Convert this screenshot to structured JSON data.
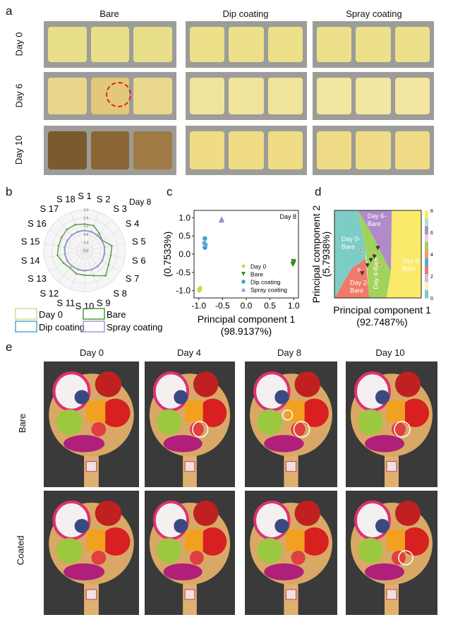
{
  "panel_labels": {
    "a": "a",
    "b": "b",
    "c": "c",
    "d": "d",
    "e": "e"
  },
  "panel_a": {
    "columns": [
      "Bare",
      "Dip coating",
      "Spray coating"
    ],
    "rows": [
      "Day 0",
      "Day 6",
      "Day 10"
    ]
  },
  "panel_e": {
    "columns": [
      "Day 0",
      "Day 4",
      "Day 8",
      "Day 10"
    ],
    "rows": [
      "Bare",
      "Coated"
    ]
  },
  "chart_data": [
    {
      "panel": "b",
      "type": "radar",
      "annotation": "Day 8",
      "axes": [
        "S 1",
        "S 2",
        "S 3",
        "S 4",
        "S 5",
        "S 6",
        "S 7",
        "S 8",
        "S 9",
        "S 10",
        "S 11",
        "S 12",
        "S 13",
        "S 14",
        "S 15",
        "S 16",
        "S 17",
        "S 18"
      ],
      "radial_ticks": [
        "0.0",
        "0.4",
        "0.8",
        "1.2",
        "1.6",
        "2.0"
      ],
      "rlim": [
        0,
        2.0
      ],
      "series": [
        {
          "name": "Day 0",
          "color": "#d8d890",
          "values": [
            1.0,
            1.0,
            1.0,
            1.0,
            1.0,
            1.0,
            1.0,
            1.0,
            1.0,
            1.0,
            1.0,
            1.0,
            1.0,
            1.0,
            1.0,
            1.0,
            1.0,
            1.0
          ]
        },
        {
          "name": "Bare",
          "color": "#4f9a3a",
          "values": [
            1.3,
            1.3,
            1.1,
            1.0,
            1.35,
            1.3,
            1.35,
            1.6,
            1.3,
            1.2,
            1.2,
            1.1,
            1.2,
            1.35,
            1.3,
            1.3,
            1.35,
            1.35
          ]
        },
        {
          "name": "Dip coating",
          "color": "#5aa6c8",
          "values": [
            0.98,
            0.97,
            0.96,
            0.97,
            0.98,
            0.97,
            0.98,
            0.99,
            0.98,
            0.97,
            0.96,
            0.97,
            0.98,
            0.97,
            0.98,
            0.97,
            0.98,
            0.97
          ]
        },
        {
          "name": "Spray coating",
          "color": "#a79ad0",
          "values": [
            1.0,
            0.99,
            0.98,
            0.99,
            1.0,
            0.99,
            1.0,
            1.01,
            1.0,
            0.99,
            0.98,
            0.99,
            1.0,
            0.99,
            1.0,
            0.99,
            1.0,
            0.99
          ]
        }
      ],
      "legend": "bottom"
    },
    {
      "panel": "c",
      "type": "scatter",
      "annotation": "Day 8",
      "xlabel": "Principal component 1",
      "xlabel2": "(98.9137%)",
      "ylabel": "Principal component 2",
      "ylabel2": "(0.7533%)",
      "xlim": [
        -1.1,
        1.1
      ],
      "ylim": [
        -1.2,
        1.2
      ],
      "xticks": [
        "-1.0",
        "-0.5",
        "0.0",
        "0.5",
        "1.0"
      ],
      "yticks": [
        "1.0",
        "0.5",
        "0.0",
        "-0.5",
        "-1.0"
      ],
      "legend": "bottom-right",
      "series": [
        {
          "name": "Day 0",
          "marker": "diamond",
          "color": "#c8d63a",
          "points": [
            [
              -0.99,
              -0.95
            ],
            [
              -0.98,
              -0.98
            ],
            [
              -0.97,
              -0.93
            ],
            [
              -0.99,
              -1.0
            ]
          ]
        },
        {
          "name": "Bare",
          "marker": "triangle-down",
          "color": "#3c8a2a",
          "points": [
            [
              0.99,
              -0.2
            ],
            [
              1.0,
              -0.25
            ],
            [
              0.98,
              -0.28
            ],
            [
              1.0,
              -0.22
            ]
          ]
        },
        {
          "name": "Dip coating",
          "marker": "circle",
          "color": "#3fa0d0",
          "points": [
            [
              -0.87,
              0.43
            ],
            [
              -0.88,
              0.3
            ],
            [
              -0.86,
              0.25
            ],
            [
              -0.87,
              0.18
            ]
          ]
        },
        {
          "name": "Spray coating",
          "marker": "triangle-up",
          "color": "#a38ed2",
          "points": [
            [
              -0.52,
              0.97
            ],
            [
              -0.53,
              0.93
            ],
            [
              -0.51,
              0.95
            ]
          ]
        }
      ]
    },
    {
      "panel": "d",
      "type": "decision-regions",
      "xlabel": "Principal component 1",
      "xlabel2": "(92.7487%)",
      "ylabel": "Principal component 2",
      "ylabel2": "(5.7938%)",
      "regions": [
        "Day 0-Bare",
        "Day 2-Bare",
        "Day 4-Bare",
        "Day 6-Bare",
        "Day 8-Bare"
      ],
      "region_colors": {
        "Day 0-Bare": "#7dcdc6",
        "Day 2-Bare": "#f07a6a",
        "Day 4-Bare": "#9fd35a",
        "Day 6-Bare": "#b08ac9",
        "Day 8-Bare": "#fbe96a"
      },
      "colorbar_ticks": [
        "0",
        "2",
        "4",
        "6",
        "8"
      ]
    }
  ]
}
